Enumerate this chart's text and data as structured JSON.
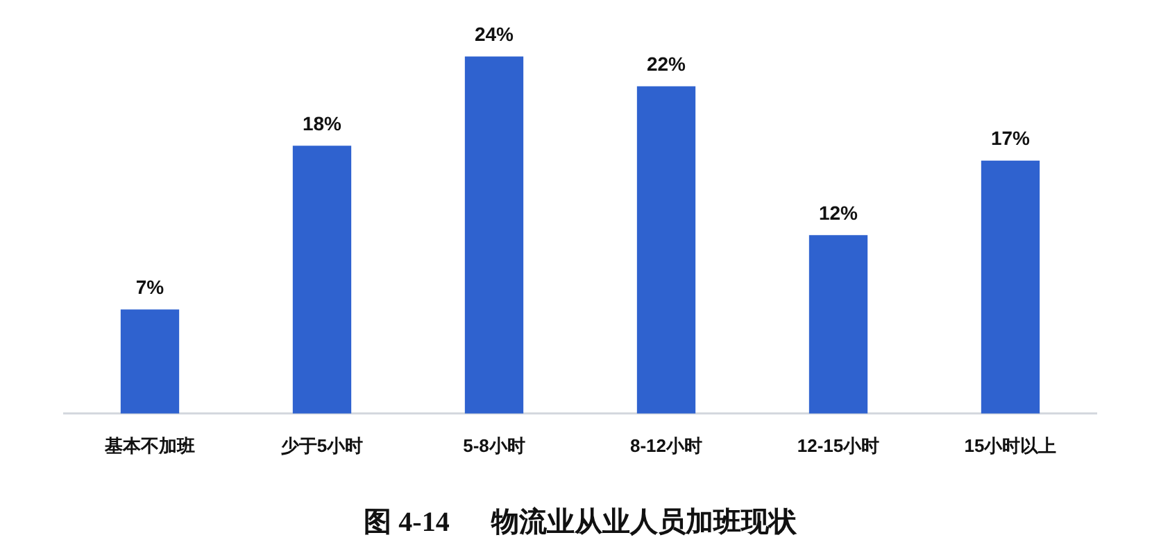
{
  "chart_data": {
    "type": "bar",
    "title": "图 4-14      物流业从业人员加班现状",
    "categories": [
      "基本不加班",
      "少于5小时",
      "5-8小时",
      "8-12小时",
      "12-15小时",
      "15小时以上"
    ],
    "values": [
      7,
      18,
      24,
      22,
      12,
      17
    ],
    "color": "#2f62cf",
    "value_labels": [
      "7%",
      "18%",
      "24%",
      "22%",
      "12%",
      "17%"
    ],
    "grid": false,
    "legend": false,
    "tick_labels": "x"
  }
}
